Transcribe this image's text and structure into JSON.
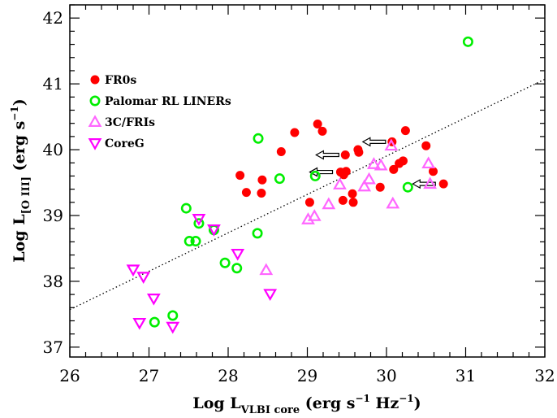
{
  "chart_data": {
    "type": "scatter",
    "title": "",
    "xlabel": {
      "main": "Log L",
      "sub": "VLBI core",
      "units_open": "(erg s",
      "units_exp": "−1",
      "units_mid": " Hz",
      "units_exp2": "−1",
      "units_close": ")"
    },
    "ylabel": {
      "main": "Log L",
      "sub": "[O III]",
      "units_open": "(erg s",
      "units_exp": "−1",
      "units_close": ")"
    },
    "xlim": [
      26,
      32
    ],
    "ylim": [
      36.85,
      42.2
    ],
    "xticks": [
      26,
      27,
      28,
      29,
      30,
      31,
      32
    ],
    "yticks": [
      37,
      38,
      39,
      40,
      41,
      42
    ],
    "grid": false,
    "legend_position": "upper-left",
    "series": [
      {
        "name": "FR0s",
        "marker": "filled-circle",
        "color": "#ff0000",
        "points": [
          [
            28.15,
            39.61
          ],
          [
            28.23,
            39.35
          ],
          [
            28.42,
            39.34
          ],
          [
            28.43,
            39.54
          ],
          [
            28.67,
            39.97
          ],
          [
            28.84,
            40.26
          ],
          [
            29.03,
            39.2
          ],
          [
            29.13,
            40.39
          ],
          [
            29.19,
            40.28
          ],
          [
            29.42,
            39.66
          ],
          [
            29.45,
            39.23
          ],
          [
            29.46,
            39.62
          ],
          [
            29.48,
            39.92
          ],
          [
            29.49,
            39.67
          ],
          [
            29.57,
            39.33
          ],
          [
            29.58,
            39.2
          ],
          [
            29.64,
            40.0
          ],
          [
            29.65,
            39.96
          ],
          [
            29.92,
            39.43
          ],
          [
            30.07,
            40.12
          ],
          [
            30.09,
            39.7
          ],
          [
            30.16,
            39.79
          ],
          [
            30.21,
            39.83
          ],
          [
            30.24,
            40.29
          ],
          [
            30.5,
            40.06
          ],
          [
            30.59,
            39.67
          ],
          [
            30.72,
            39.48
          ]
        ]
      },
      {
        "name": "Palomar RL LINERs",
        "marker": "open-circle",
        "color": "#00ee00",
        "points": [
          [
            27.07,
            37.38
          ],
          [
            27.3,
            37.48
          ],
          [
            27.47,
            39.11
          ],
          [
            27.51,
            38.61
          ],
          [
            27.59,
            38.61
          ],
          [
            27.63,
            38.88
          ],
          [
            27.82,
            38.78
          ],
          [
            27.96,
            38.28
          ],
          [
            28.11,
            38.2
          ],
          [
            28.37,
            38.73
          ],
          [
            28.38,
            40.17
          ],
          [
            28.65,
            39.56
          ],
          [
            29.1,
            39.6
          ],
          [
            30.27,
            39.43
          ],
          [
            31.03,
            41.64
          ]
        ]
      },
      {
        "name": "3C/FRIs",
        "marker": "open-triangle-up",
        "color": "#ff66ff",
        "points": [
          [
            28.48,
            38.17
          ],
          [
            29.01,
            38.94
          ],
          [
            29.09,
            38.99
          ],
          [
            29.27,
            39.17
          ],
          [
            29.41,
            39.47
          ],
          [
            29.72,
            39.44
          ],
          [
            29.78,
            39.55
          ],
          [
            29.84,
            39.78
          ],
          [
            29.93,
            39.76
          ],
          [
            30.06,
            40.06
          ],
          [
            30.08,
            39.18
          ],
          [
            30.53,
            39.79
          ],
          [
            30.55,
            39.48
          ]
        ]
      },
      {
        "name": "CoreG",
        "marker": "open-triangle-down",
        "color": "#ff00ff",
        "points": [
          [
            26.8,
            38.18
          ],
          [
            26.88,
            37.37
          ],
          [
            26.93,
            38.07
          ],
          [
            27.06,
            37.74
          ],
          [
            27.3,
            37.31
          ],
          [
            27.63,
            38.95
          ],
          [
            27.82,
            38.79
          ],
          [
            28.12,
            38.42
          ],
          [
            28.53,
            37.81
          ]
        ]
      }
    ],
    "upper_limit_arrows": [
      [
        29.47,
        39.92
      ],
      [
        29.39,
        39.66
      ],
      [
        30.06,
        40.12
      ],
      [
        30.69,
        39.48
      ]
    ],
    "fit_line": {
      "style": "dotted",
      "from": [
        26.0,
        37.57
      ],
      "to": [
        32.0,
        41.07
      ]
    }
  }
}
